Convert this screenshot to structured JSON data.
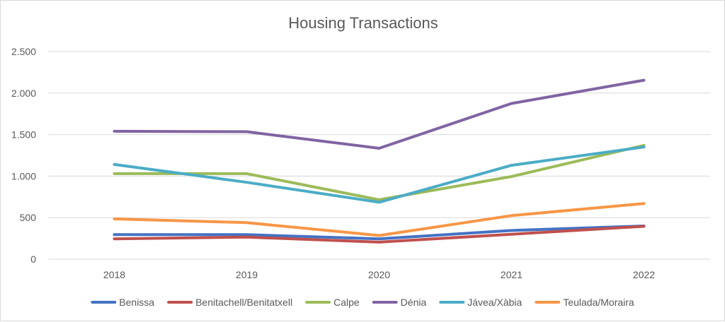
{
  "chart_data": {
    "type": "line",
    "title": "Housing Transactions",
    "xlabel": "",
    "ylabel": "",
    "categories": [
      "2018",
      "2019",
      "2020",
      "2021",
      "2022"
    ],
    "ylim": [
      0,
      2500
    ],
    "yticks": [
      0,
      500,
      1000,
      1500,
      2000,
      2500
    ],
    "ytick_labels": [
      "0",
      "500",
      "1.000",
      "1.500",
      "2.000",
      "2.500"
    ],
    "grid": true,
    "legend_position": "bottom",
    "series": [
      {
        "name": "Benissa",
        "color": "#4472c4",
        "values": [
          295,
          295,
          245,
          345,
          400
        ]
      },
      {
        "name": "Benitachell/Benitatxell",
        "color": "#c0504d",
        "values": [
          245,
          265,
          205,
          300,
          395
        ]
      },
      {
        "name": "Calpe",
        "color": "#9bbb59",
        "values": [
          1030,
          1030,
          715,
          995,
          1370
        ]
      },
      {
        "name": "Dénia",
        "color": "#8064a2",
        "values": [
          1540,
          1535,
          1335,
          1875,
          2155
        ]
      },
      {
        "name": "Jávea/Xàbia",
        "color": "#4bacc6",
        "values": [
          1140,
          925,
          685,
          1130,
          1350
        ]
      },
      {
        "name": "Teulada/Moraira",
        "color": "#f79646",
        "values": [
          485,
          440,
          285,
          525,
          670
        ]
      }
    ]
  }
}
